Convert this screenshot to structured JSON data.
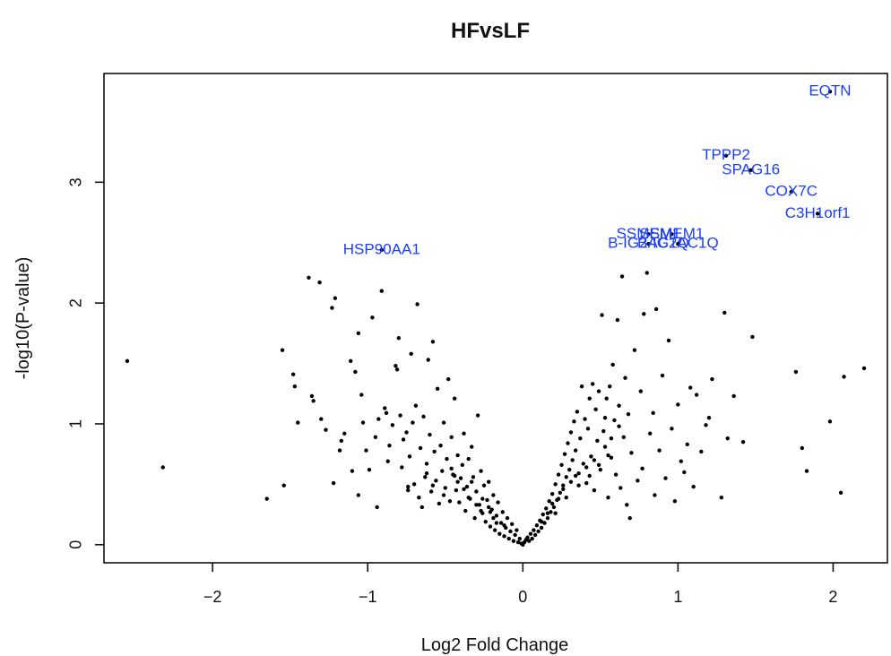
{
  "chart_data": {
    "type": "scatter",
    "title": "HFvsLF",
    "xlabel": "Log2 Fold Change",
    "ylabel": "-log10(P-value)",
    "xlim": [
      -2.7,
      2.35
    ],
    "ylim": [
      -0.15,
      3.9
    ],
    "xticks": [
      -2,
      -1,
      0,
      1,
      2
    ],
    "yticks": [
      0,
      1,
      2,
      3
    ],
    "point_color": "#000000",
    "label_color": "#1a3cff",
    "labeled_genes": [
      {
        "name": "EQTN",
        "x": 1.98,
        "y": 3.75
      },
      {
        "name": "TPPP2",
        "x": 1.31,
        "y": 3.22
      },
      {
        "name": "SPAG16",
        "x": 1.47,
        "y": 3.1
      },
      {
        "name": "COX7C",
        "x": 1.73,
        "y": 2.92
      },
      {
        "name": "C3H1orf1",
        "x": 1.9,
        "y": 2.74
      },
      {
        "name": "SSMEM1",
        "x": 0.81,
        "y": 2.57
      },
      {
        "name": "SSMEM1",
        "x": 0.96,
        "y": 2.57
      },
      {
        "name": "B-IG2AC1Q",
        "x": 0.81,
        "y": 2.49
      },
      {
        "name": "B-IG2AC1Q",
        "x": 1.0,
        "y": 2.49
      },
      {
        "name": "HSP90AA1",
        "x": -0.91,
        "y": 2.44
      }
    ],
    "points": [
      [
        -2.55,
        1.52
      ],
      [
        -2.32,
        0.64
      ],
      [
        -1.65,
        0.38
      ],
      [
        -1.55,
        1.61
      ],
      [
        -1.54,
        0.49
      ],
      [
        -1.48,
        1.41
      ],
      [
        -1.47,
        1.31
      ],
      [
        -1.45,
        1.01
      ],
      [
        -1.38,
        2.21
      ],
      [
        -1.36,
        1.23
      ],
      [
        -1.35,
        1.19
      ],
      [
        -1.31,
        2.17
      ],
      [
        -1.3,
        1.04
      ],
      [
        -1.27,
        0.95
      ],
      [
        -1.23,
        1.96
      ],
      [
        -1.22,
        0.51
      ],
      [
        -1.21,
        2.04
      ],
      [
        -1.18,
        0.78
      ],
      [
        -1.17,
        0.86
      ],
      [
        -1.15,
        0.92
      ],
      [
        -1.11,
        1.52
      ],
      [
        -1.1,
        0.61
      ],
      [
        -1.08,
        1.43
      ],
      [
        -1.06,
        1.75
      ],
      [
        -1.06,
        0.41
      ],
      [
        -1.04,
        1.24
      ],
      [
        -1.03,
        1.01
      ],
      [
        -1.01,
        0.78
      ],
      [
        -0.99,
        0.62
      ],
      [
        -0.97,
        1.88
      ],
      [
        -0.95,
        0.89
      ],
      [
        -0.94,
        0.31
      ],
      [
        -0.93,
        1.04
      ],
      [
        -0.91,
        2.1
      ],
      [
        -0.89,
        1.13
      ],
      [
        -0.88,
        1.09
      ],
      [
        -0.87,
        0.69
      ],
      [
        -0.86,
        0.82
      ],
      [
        -0.84,
        0.99
      ],
      [
        -0.82,
        1.48
      ],
      [
        -0.81,
        1.45
      ],
      [
        -0.8,
        1.71
      ],
      [
        -0.79,
        1.07
      ],
      [
        -0.78,
        0.64
      ],
      [
        -0.77,
        0.87
      ],
      [
        -0.75,
        0.93
      ],
      [
        -0.74,
        0.45
      ],
      [
        -0.73,
        0.73
      ],
      [
        -0.72,
        1.58
      ],
      [
        -0.71,
        1.01
      ],
      [
        -0.7,
        0.5
      ],
      [
        -0.69,
        1.15
      ],
      [
        -0.68,
        1.99
      ],
      [
        -0.67,
        0.39
      ],
      [
        -0.66,
        0.8
      ],
      [
        -0.65,
        0.31
      ],
      [
        -0.64,
        1.06
      ],
      [
        -0.63,
        0.56
      ],
      [
        -0.62,
        0.67
      ],
      [
        -0.61,
        1.53
      ],
      [
        -0.6,
        0.91
      ],
      [
        -0.59,
        0.44
      ],
      [
        -0.58,
        1.68
      ],
      [
        -0.57,
        0.77
      ],
      [
        -0.56,
        0.53
      ],
      [
        -0.55,
        1.29
      ],
      [
        -0.54,
        0.34
      ],
      [
        -0.53,
        0.82
      ],
      [
        -0.52,
        0.61
      ],
      [
        -0.51,
        1.01
      ],
      [
        -0.5,
        0.47
      ],
      [
        -0.49,
        0.71
      ],
      [
        -0.48,
        1.37
      ],
      [
        -0.47,
        0.36
      ],
      [
        -0.46,
        0.89
      ],
      [
        -0.45,
        0.58
      ],
      [
        -0.44,
        1.21
      ],
      [
        -0.43,
        0.45
      ],
      [
        -0.42,
        0.74
      ],
      [
        -0.41,
        0.35
      ],
      [
        -0.4,
        0.55
      ],
      [
        -0.39,
        0.66
      ],
      [
        -0.38,
        0.92
      ],
      [
        -0.37,
        0.28
      ],
      [
        -0.36,
        0.48
      ],
      [
        -0.35,
        0.71
      ],
      [
        -0.34,
        0.38
      ],
      [
        -0.33,
        0.81
      ],
      [
        -0.32,
        0.56
      ],
      [
        -0.31,
        0.22
      ],
      [
        -0.3,
        0.44
      ],
      [
        -0.29,
        1.07
      ],
      [
        -0.28,
        0.33
      ],
      [
        -0.27,
        0.61
      ],
      [
        -0.26,
        0.26
      ],
      [
        -0.25,
        0.49
      ],
      [
        -0.24,
        0.19
      ],
      [
        -0.23,
        0.37
      ],
      [
        -0.22,
        0.52
      ],
      [
        -0.21,
        0.15
      ],
      [
        -0.2,
        0.29
      ],
      [
        -0.19,
        0.41
      ],
      [
        -0.18,
        0.12
      ],
      [
        -0.17,
        0.24
      ],
      [
        -0.16,
        0.35
      ],
      [
        -0.15,
        0.09
      ],
      [
        -0.14,
        0.18
      ],
      [
        -0.13,
        0.27
      ],
      [
        -0.12,
        0.07
      ],
      [
        -0.11,
        0.14
      ],
      [
        -0.1,
        0.22
      ],
      [
        -0.09,
        0.05
      ],
      [
        -0.08,
        0.11
      ],
      [
        -0.07,
        0.17
      ],
      [
        -0.06,
        0.03
      ],
      [
        -0.05,
        0.08
      ],
      [
        -0.04,
        0.12
      ],
      [
        -0.03,
        0.02
      ],
      [
        -0.02,
        0.05
      ],
      [
        -0.01,
        0.01
      ],
      [
        0.0,
        0.0
      ],
      [
        0.01,
        0.02
      ],
      [
        0.02,
        0.04
      ],
      [
        0.03,
        0.06
      ],
      [
        0.04,
        0.03
      ],
      [
        0.05,
        0.09
      ],
      [
        0.06,
        0.05
      ],
      [
        0.07,
        0.12
      ],
      [
        0.08,
        0.08
      ],
      [
        0.09,
        0.16
      ],
      [
        0.1,
        0.11
      ],
      [
        0.11,
        0.2
      ],
      [
        0.12,
        0.14
      ],
      [
        0.13,
        0.25
      ],
      [
        0.14,
        0.18
      ],
      [
        0.15,
        0.3
      ],
      [
        0.16,
        0.22
      ],
      [
        0.17,
        0.36
      ],
      [
        0.18,
        0.27
      ],
      [
        0.19,
        0.42
      ],
      [
        0.2,
        0.31
      ],
      [
        0.21,
        0.5
      ],
      [
        0.22,
        0.37
      ],
      [
        0.23,
        0.58
      ],
      [
        0.24,
        0.43
      ],
      [
        0.25,
        0.66
      ],
      [
        0.26,
        0.49
      ],
      [
        0.27,
        0.75
      ],
      [
        0.28,
        0.56
      ],
      [
        0.29,
        0.84
      ],
      [
        0.3,
        0.62
      ],
      [
        0.31,
        0.93
      ],
      [
        0.32,
        0.7
      ],
      [
        0.33,
        1.02
      ],
      [
        0.34,
        0.78
      ],
      [
        0.35,
        1.1
      ],
      [
        0.36,
        0.59
      ],
      [
        0.37,
        0.88
      ],
      [
        0.38,
        1.31
      ],
      [
        0.39,
        0.67
      ],
      [
        0.4,
        1.04
      ],
      [
        0.41,
        0.51
      ],
      [
        0.42,
        0.96
      ],
      [
        0.43,
        1.21
      ],
      [
        0.44,
        0.73
      ],
      [
        0.45,
        1.33
      ],
      [
        0.46,
        0.45
      ],
      [
        0.47,
        1.12
      ],
      [
        0.48,
        0.86
      ],
      [
        0.49,
        1.27
      ],
      [
        0.5,
        0.62
      ],
      [
        0.51,
        1.9
      ],
      [
        0.52,
        0.94
      ],
      [
        0.53,
        1.05
      ],
      [
        0.54,
        1.21
      ],
      [
        0.55,
        0.39
      ],
      [
        0.56,
        1.31
      ],
      [
        0.57,
        0.72
      ],
      [
        0.58,
        1.49
      ],
      [
        0.59,
        1.03
      ],
      [
        0.6,
        0.58
      ],
      [
        0.61,
        1.86
      ],
      [
        0.62,
        1.15
      ],
      [
        0.63,
        0.47
      ],
      [
        0.64,
        2.22
      ],
      [
        0.65,
        0.89
      ],
      [
        0.66,
        1.38
      ],
      [
        0.67,
        0.33
      ],
      [
        0.68,
        1.08
      ],
      [
        0.69,
        0.22
      ],
      [
        0.7,
        0.76
      ],
      [
        0.72,
        1.61
      ],
      [
        0.74,
        0.53
      ],
      [
        0.76,
        1.27
      ],
      [
        0.77,
        0.63
      ],
      [
        0.78,
        1.91
      ],
      [
        0.8,
        2.25
      ],
      [
        0.82,
        0.92
      ],
      [
        0.84,
        1.09
      ],
      [
        0.85,
        0.41
      ],
      [
        0.86,
        1.95
      ],
      [
        0.88,
        0.78
      ],
      [
        0.9,
        1.4
      ],
      [
        0.92,
        0.55
      ],
      [
        0.94,
        1.69
      ],
      [
        0.96,
        0.96
      ],
      [
        0.98,
        0.36
      ],
      [
        1.0,
        1.16
      ],
      [
        1.02,
        0.69
      ],
      [
        1.04,
        0.6
      ],
      [
        1.06,
        0.83
      ],
      [
        1.08,
        1.3
      ],
      [
        1.1,
        0.48
      ],
      [
        1.12,
        1.24
      ],
      [
        1.15,
        0.77
      ],
      [
        1.18,
        0.99
      ],
      [
        1.2,
        1.05
      ],
      [
        1.22,
        1.37
      ],
      [
        1.28,
        0.39
      ],
      [
        1.3,
        1.92
      ],
      [
        1.32,
        0.88
      ],
      [
        1.36,
        1.23
      ],
      [
        1.42,
        0.85
      ],
      [
        1.48,
        1.72
      ],
      [
        1.76,
        1.43
      ],
      [
        1.8,
        0.8
      ],
      [
        1.83,
        0.61
      ],
      [
        1.98,
        1.02
      ],
      [
        2.05,
        0.43
      ],
      [
        2.07,
        1.39
      ],
      [
        2.2,
        1.46
      ],
      [
        -0.74,
        0.48
      ],
      [
        -0.62,
        0.59
      ],
      [
        -0.58,
        0.49
      ],
      [
        -0.46,
        0.63
      ],
      [
        -0.42,
        0.52
      ],
      [
        -0.35,
        0.39
      ],
      [
        -0.3,
        0.33
      ],
      [
        -0.27,
        0.28
      ],
      [
        -0.22,
        0.31
      ],
      [
        -0.19,
        0.22
      ],
      [
        -0.17,
        0.18
      ],
      [
        -0.12,
        0.16
      ],
      [
        0.12,
        0.19
      ],
      [
        0.16,
        0.26
      ],
      [
        0.19,
        0.34
      ],
      [
        0.23,
        0.38
      ],
      [
        0.26,
        0.46
      ],
      [
        0.31,
        0.52
      ],
      [
        0.34,
        0.57
      ],
      [
        0.41,
        0.64
      ],
      [
        0.46,
        0.7
      ],
      [
        0.53,
        0.81
      ],
      [
        0.57,
        0.88
      ],
      [
        0.62,
        0.98
      ],
      [
        -0.51,
        0.41
      ],
      [
        -0.44,
        0.57
      ],
      [
        -0.38,
        0.46
      ],
      [
        -0.33,
        0.52
      ],
      [
        -0.26,
        0.38
      ],
      [
        -0.21,
        0.27
      ],
      [
        0.21,
        0.26
      ],
      [
        0.28,
        0.39
      ],
      [
        0.36,
        0.49
      ],
      [
        0.43,
        0.57
      ],
      [
        0.49,
        0.66
      ],
      [
        0.55,
        0.74
      ]
    ]
  }
}
